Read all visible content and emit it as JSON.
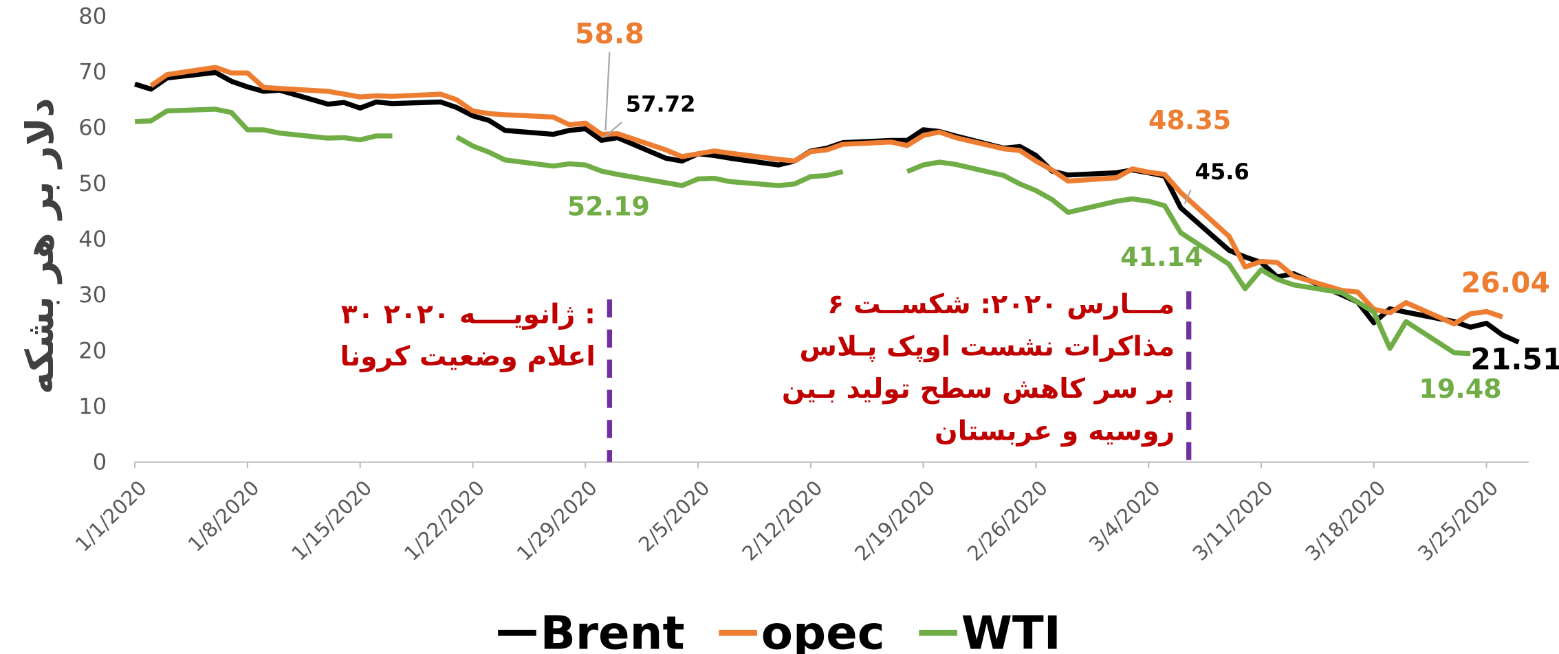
{
  "chart_data": {
    "type": "line",
    "y_label": "دلار بر هر بشکه",
    "x": [
      "1/1/2020",
      "1/2/2020",
      "1/3/2020",
      "1/6/2020",
      "1/7/2020",
      "1/8/2020",
      "1/9/2020",
      "1/10/2020",
      "1/13/2020",
      "1/14/2020",
      "1/15/2020",
      "1/16/2020",
      "1/17/2020",
      "1/20/2020",
      "1/21/2020",
      "1/22/2020",
      "1/23/2020",
      "1/24/2020",
      "1/27/2020",
      "1/28/2020",
      "1/29/2020",
      "1/30/2020",
      "1/31/2020",
      "2/3/2020",
      "2/4/2020",
      "2/5/2020",
      "2/6/2020",
      "2/7/2020",
      "2/10/2020",
      "2/11/2020",
      "2/12/2020",
      "2/13/2020",
      "2/14/2020",
      "2/17/2020",
      "2/18/2020",
      "2/19/2020",
      "2/20/2020",
      "2/21/2020",
      "2/24/2020",
      "2/25/2020",
      "2/26/2020",
      "2/27/2020",
      "2/28/2020",
      "3/2/2020",
      "3/3/2020",
      "3/4/2020",
      "3/5/2020",
      "3/6/2020",
      "3/9/2020",
      "3/10/2020",
      "3/11/2020",
      "3/12/2020",
      "3/13/2020",
      "3/16/2020",
      "3/17/2020",
      "3/18/2020",
      "3/19/2020",
      "3/20/2020",
      "3/23/2020",
      "3/24/2020",
      "3/25/2020",
      "3/26/2020",
      "3/27/2020"
    ],
    "xlim": [
      "1/1/2020",
      "3/28/2020"
    ],
    "xticks": [
      "1/1/2020",
      "1/8/2020",
      "1/15/2020",
      "1/22/2020",
      "1/29/2020",
      "2/5/2020",
      "2/12/2020",
      "2/19/2020",
      "2/26/2020",
      "3/4/2020",
      "3/11/2020",
      "3/18/2020",
      "3/25/2020"
    ],
    "ylim": [
      0,
      80
    ],
    "yticks": [
      0,
      10,
      20,
      30,
      40,
      50,
      60,
      70,
      80
    ],
    "grid": false,
    "legend": "bottom",
    "series": [
      {
        "name": "Brent",
        "color": "#000000",
        "values": [
          67.8,
          66.9,
          68.9,
          69.9,
          68.3,
          67.3,
          66.5,
          66.7,
          64.2,
          64.5,
          63.5,
          64.6,
          64.3,
          64.6,
          63.6,
          62.1,
          61.3,
          59.5,
          58.8,
          59.5,
          59.8,
          57.72,
          58.2,
          54.5,
          54.0,
          55.3,
          55.0,
          54.5,
          53.3,
          54.0,
          55.8,
          56.3,
          57.3,
          57.7,
          57.7,
          59.6,
          59.3,
          58.5,
          56.3,
          56.6,
          55.0,
          52.2,
          51.5,
          51.9,
          52.4,
          51.9,
          51.3,
          45.6,
          38.0,
          36.8,
          35.8,
          33.2,
          33.8,
          30.0,
          28.7,
          25.0,
          27.5,
          26.9,
          25.2,
          24.2,
          24.9,
          22.8,
          21.51
        ],
        "value_labels": [
          null,
          null,
          null,
          null,
          null,
          null,
          null,
          null,
          null,
          null,
          null,
          null,
          null,
          null,
          null,
          null,
          null,
          null,
          null,
          null,
          null,
          "57.72",
          null,
          null,
          null,
          null,
          null,
          null,
          null,
          null,
          null,
          null,
          null,
          null,
          null,
          null,
          null,
          null,
          null,
          null,
          null,
          null,
          null,
          null,
          null,
          null,
          null,
          "45.6",
          null,
          null,
          null,
          null,
          null,
          null,
          null,
          null,
          null,
          null,
          null,
          null,
          null,
          null,
          "21.51"
        ]
      },
      {
        "name": "opec",
        "color": "#ED7D31",
        "values": [
          null,
          67.5,
          69.5,
          70.8,
          69.8,
          69.8,
          67.2,
          67.0,
          66.5,
          66.0,
          65.5,
          65.7,
          65.6,
          66.0,
          65.0,
          63.0,
          62.5,
          62.3,
          61.9,
          60.5,
          60.8,
          58.8,
          58.9,
          56.0,
          54.8,
          55.3,
          55.8,
          55.4,
          54.3,
          54.0,
          55.7,
          56.0,
          57.0,
          57.4,
          56.8,
          58.6,
          59.2,
          58.2,
          56.2,
          55.9,
          54.0,
          52.4,
          50.4,
          51.0,
          52.6,
          52.0,
          51.6,
          48.35,
          40.5,
          35.0,
          36.0,
          35.8,
          33.4,
          30.8,
          30.5,
          27.4,
          26.8,
          28.6,
          24.8,
          26.6,
          27.0,
          26.04,
          null
        ],
        "value_labels": [
          null,
          null,
          null,
          null,
          null,
          null,
          null,
          null,
          null,
          null,
          null,
          null,
          null,
          null,
          null,
          null,
          null,
          null,
          null,
          null,
          null,
          "58.8",
          null,
          null,
          null,
          null,
          null,
          null,
          null,
          null,
          null,
          null,
          null,
          null,
          null,
          null,
          null,
          null,
          null,
          null,
          null,
          null,
          null,
          null,
          null,
          null,
          null,
          "48.35",
          null,
          null,
          null,
          null,
          null,
          null,
          null,
          null,
          null,
          null,
          null,
          null,
          null,
          "26.04",
          null
        ]
      },
      {
        "name": "WTI",
        "color": "#70AD47",
        "values": [
          61.1,
          61.2,
          63.0,
          63.3,
          62.7,
          59.6,
          59.6,
          59.0,
          58.1,
          58.2,
          57.8,
          58.5,
          58.5,
          null,
          58.3,
          56.7,
          55.6,
          54.2,
          53.1,
          53.5,
          53.3,
          52.19,
          51.6,
          50.1,
          49.6,
          50.8,
          50.9,
          50.3,
          49.6,
          49.9,
          51.2,
          51.4,
          52.1,
          null,
          52.1,
          53.3,
          53.8,
          53.4,
          51.4,
          49.9,
          48.7,
          47.1,
          44.8,
          46.8,
          47.2,
          46.8,
          46.0,
          41.14,
          35.5,
          31.1,
          34.5,
          32.8,
          31.8,
          30.4,
          28.7,
          26.9,
          20.4,
          25.2,
          19.6,
          19.48,
          null,
          null,
          null
        ],
        "value_labels": [
          null,
          null,
          null,
          null,
          null,
          null,
          null,
          null,
          null,
          null,
          null,
          null,
          null,
          null,
          null,
          null,
          null,
          null,
          null,
          null,
          null,
          "52.19",
          null,
          null,
          null,
          null,
          null,
          null,
          null,
          null,
          null,
          null,
          null,
          null,
          null,
          null,
          null,
          null,
          null,
          null,
          null,
          null,
          null,
          null,
          null,
          null,
          null,
          "41.14",
          null,
          null,
          null,
          null,
          null,
          null,
          null,
          null,
          null,
          null,
          null,
          "19.48",
          null,
          null,
          null
        ]
      }
    ],
    "annotations": [
      {
        "x": "1/30/2020",
        "lines": [
          "۳۰ ژانویــــه ۲۰۲۰ :",
          "اعلام وضعیت کرونا"
        ]
      },
      {
        "x": "3/6/2020",
        "lines": [
          "۶ مـــارس ۲۰۲۰: شکســت",
          "مذاکرات نشست اوپک پـلاس",
          "بر سر کاهش سطح تولید بـین",
          "روسیه و عربستان"
        ]
      }
    ]
  }
}
